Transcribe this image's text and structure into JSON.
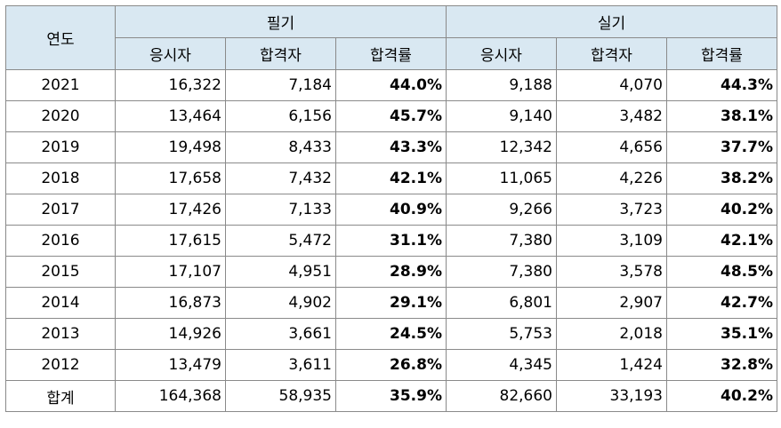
{
  "header": {
    "year": "연도",
    "group_written": "필기",
    "group_practical": "실기",
    "sub_applicants": "응시자",
    "sub_passers": "합격자",
    "sub_rate": "합격률"
  },
  "rows": [
    {
      "year": "2021",
      "w_app": "16,322",
      "w_pass": "7,184",
      "w_rate": "44.0%",
      "p_app": "9,188",
      "p_pass": "4,070",
      "p_rate": "44.3%"
    },
    {
      "year": "2020",
      "w_app": "13,464",
      "w_pass": "6,156",
      "w_rate": "45.7%",
      "p_app": "9,140",
      "p_pass": "3,482",
      "p_rate": "38.1%"
    },
    {
      "year": "2019",
      "w_app": "19,498",
      "w_pass": "8,433",
      "w_rate": "43.3%",
      "p_app": "12,342",
      "p_pass": "4,656",
      "p_rate": "37.7%"
    },
    {
      "year": "2018",
      "w_app": "17,658",
      "w_pass": "7,432",
      "w_rate": "42.1%",
      "p_app": "11,065",
      "p_pass": "4,226",
      "p_rate": "38.2%"
    },
    {
      "year": "2017",
      "w_app": "17,426",
      "w_pass": "7,133",
      "w_rate": "40.9%",
      "p_app": "9,266",
      "p_pass": "3,723",
      "p_rate": "40.2%"
    },
    {
      "year": "2016",
      "w_app": "17,615",
      "w_pass": "5,472",
      "w_rate": "31.1%",
      "p_app": "7,380",
      "p_pass": "3,109",
      "p_rate": "42.1%"
    },
    {
      "year": "2015",
      "w_app": "17,107",
      "w_pass": "4,951",
      "w_rate": "28.9%",
      "p_app": "7,380",
      "p_pass": "3,578",
      "p_rate": "48.5%"
    },
    {
      "year": "2014",
      "w_app": "16,873",
      "w_pass": "4,902",
      "w_rate": "29.1%",
      "p_app": "6,801",
      "p_pass": "2,907",
      "p_rate": "42.7%"
    },
    {
      "year": "2013",
      "w_app": "14,926",
      "w_pass": "3,661",
      "w_rate": "24.5%",
      "p_app": "5,753",
      "p_pass": "2,018",
      "p_rate": "35.1%"
    },
    {
      "year": "2012",
      "w_app": "13,479",
      "w_pass": "3,611",
      "w_rate": "26.8%",
      "p_app": "4,345",
      "p_pass": "1,424",
      "p_rate": "32.8%"
    }
  ],
  "total": {
    "year": "합계",
    "w_app": "164,368",
    "w_pass": "58,935",
    "w_rate": "35.9%",
    "p_app": "82,660",
    "p_pass": "33,193",
    "p_rate": "40.2%"
  },
  "colors": {
    "header_bg": "#d9e8f2",
    "border": "#8a8a8a"
  }
}
